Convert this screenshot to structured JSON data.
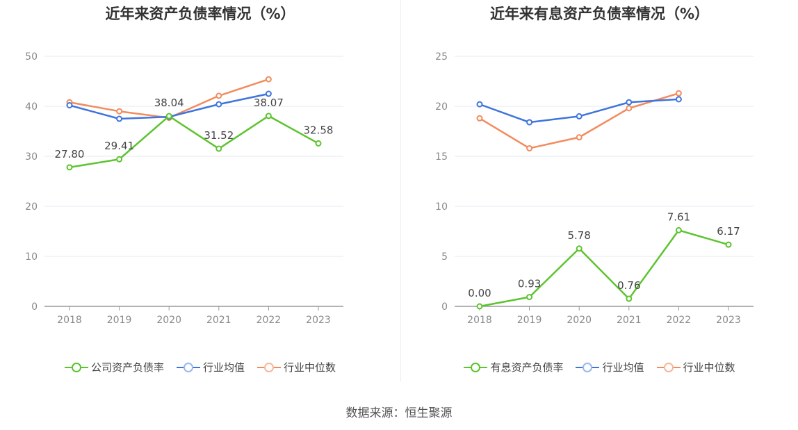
{
  "chart_data": [
    {
      "type": "line",
      "title": "近年来资产负债率情况（%）",
      "categories": [
        "2018",
        "2019",
        "2020",
        "2021",
        "2022",
        "2023"
      ],
      "ylim": [
        0,
        50
      ],
      "yticks": [
        0,
        10,
        20,
        30,
        40,
        50
      ],
      "grid": true,
      "legend_position": "bottom",
      "series": [
        {
          "name": "公司资产负债率",
          "color": "#5cc42f",
          "values": [
            27.8,
            29.41,
            38.04,
            31.52,
            38.07,
            32.58
          ],
          "labels": [
            "27.80",
            "29.41",
            "38.04",
            "31.52",
            "38.07",
            "32.58"
          ]
        },
        {
          "name": "行业均值",
          "color": "#3f74dd",
          "values": [
            40.2,
            37.5,
            37.9,
            40.4,
            42.5,
            null
          ]
        },
        {
          "name": "行业中位数",
          "color": "#f28b5d",
          "values": [
            40.8,
            39.0,
            37.7,
            42.1,
            45.4,
            null
          ]
        }
      ]
    },
    {
      "type": "line",
      "title": "近年来有息资产负债率情况（%）",
      "categories": [
        "2018",
        "2019",
        "2020",
        "2021",
        "2022",
        "2023"
      ],
      "ylim": [
        0,
        25
      ],
      "yticks": [
        0,
        5,
        10,
        15,
        20,
        25
      ],
      "grid": true,
      "legend_position": "bottom",
      "series": [
        {
          "name": "有息资产负债率",
          "color": "#5cc42f",
          "values": [
            0.0,
            0.93,
            5.78,
            0.76,
            7.61,
            6.17
          ],
          "labels": [
            "0.00",
            "0.93",
            "5.78",
            "0.76",
            "7.61",
            "6.17"
          ]
        },
        {
          "name": "行业均值",
          "color": "#3f74dd",
          "values": [
            20.2,
            18.4,
            19.0,
            20.4,
            20.7,
            null
          ]
        },
        {
          "name": "行业中位数",
          "color": "#f28b5d",
          "values": [
            18.8,
            15.8,
            16.9,
            19.8,
            21.3,
            null
          ]
        }
      ]
    }
  ],
  "source": "数据来源：恒生聚源",
  "legend_colors": {
    "line": [
      "#5cc42f",
      "#3f74dd",
      "#f28b5d"
    ],
    "ring": [
      "#5cc42f",
      "#9ab7ee",
      "#f7b79a"
    ]
  }
}
